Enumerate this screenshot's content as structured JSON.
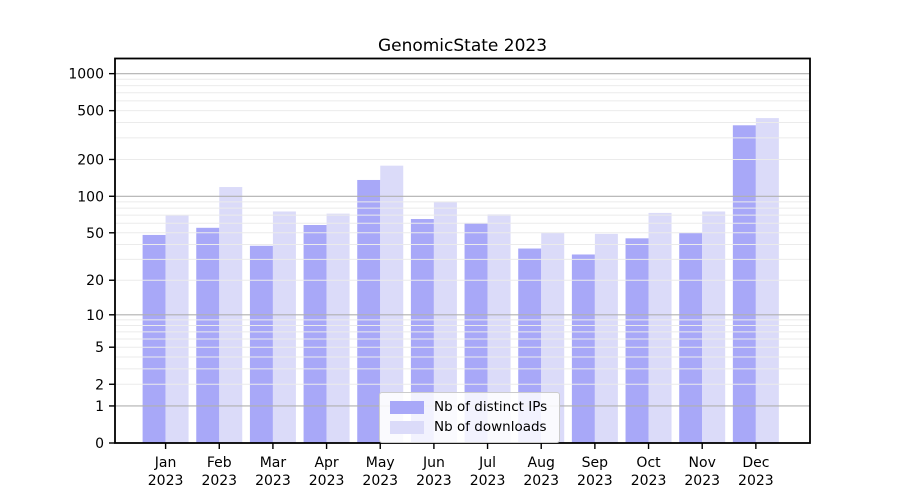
{
  "figure": {
    "background": "#ffffff",
    "text_color": "#000000"
  },
  "chart_data": {
    "type": "bar",
    "title": "GenomicState 2023",
    "yscale": "log1p",
    "xlabel": "",
    "ylabel": "",
    "categories": [
      "Jan 2023",
      "Feb 2023",
      "Mar 2023",
      "Apr 2023",
      "May 2023",
      "Jun 2023",
      "Jul 2023",
      "Aug 2023",
      "Sep 2023",
      "Oct 2023",
      "Nov 2023",
      "Dec 2023"
    ],
    "x_tick_month": [
      "Jan",
      "Feb",
      "Mar",
      "Apr",
      "May",
      "Jun",
      "Jul",
      "Aug",
      "Sep",
      "Oct",
      "Nov",
      "Dec"
    ],
    "x_tick_year": "2023",
    "series": [
      {
        "name": "Nb of distinct IPs",
        "color": "#a8a8f8",
        "values": [
          48,
          55,
          39,
          58,
          136,
          65,
          60,
          37,
          33,
          45,
          50,
          380
        ]
      },
      {
        "name": "Nb of downloads",
        "color": "#dbdbf9",
        "values": [
          70,
          119,
          75,
          72,
          178,
          90,
          71,
          50,
          49,
          73,
          75,
          435
        ]
      }
    ],
    "y_ticks": [
      0,
      1,
      2,
      5,
      10,
      20,
      50,
      100,
      200,
      500,
      1000
    ],
    "ylim": [
      0,
      1320
    ],
    "grid": {
      "on": true,
      "major_at": [
        1,
        10,
        100,
        1000
      ],
      "major_color": "#b0b0b0",
      "minor_color": "#ebebeb"
    },
    "legend_position": "bottom-center",
    "axis_color": "#000000"
  }
}
